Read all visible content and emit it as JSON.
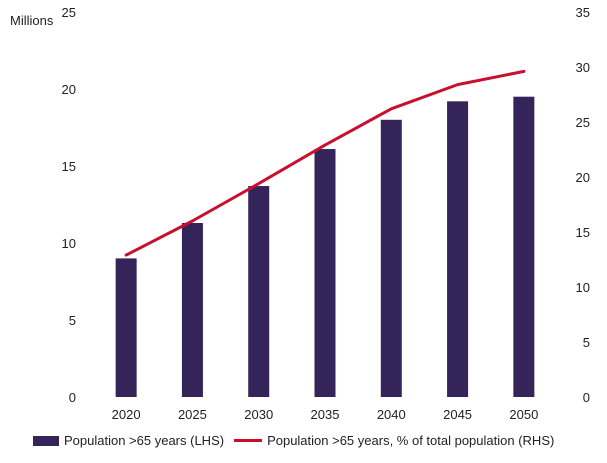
{
  "chart_data": {
    "type": "bar",
    "unit_label": "Millions",
    "categories": [
      "2020",
      "2025",
      "2030",
      "2035",
      "2040",
      "2045",
      "2050"
    ],
    "series": [
      {
        "name": "Population >65 years (LHS)",
        "type": "bar",
        "axis": "left",
        "color": "#35245a",
        "values": [
          9.0,
          11.3,
          13.7,
          16.1,
          18.0,
          19.2,
          19.5
        ]
      },
      {
        "name": "Population >65 years, % of total population (RHS)",
        "type": "line",
        "axis": "right",
        "color": "#c8102e",
        "values": [
          12.9,
          16.0,
          19.4,
          22.9,
          26.2,
          28.4,
          29.6
        ]
      }
    ],
    "y_left": {
      "lim": [
        0,
        25
      ],
      "ticks": [
        "0",
        "5",
        "10",
        "15",
        "20",
        "25"
      ]
    },
    "y_right": {
      "lim": [
        0,
        35
      ],
      "ticks": [
        "0",
        "5",
        "10",
        "15",
        "20",
        "25",
        "30",
        "35"
      ]
    },
    "grid": false,
    "legend_position": "bottom"
  }
}
